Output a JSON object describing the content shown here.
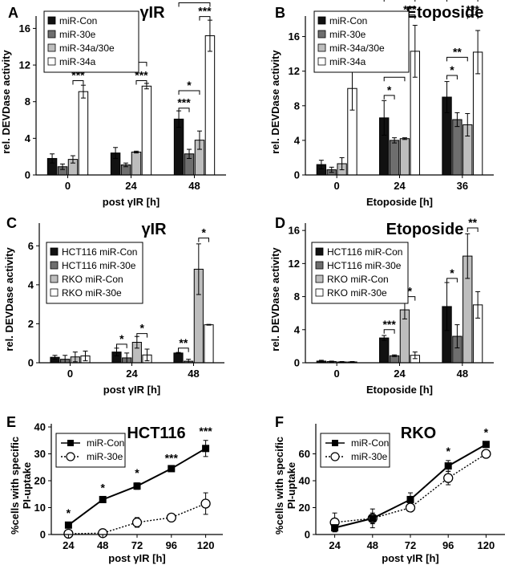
{
  "colors": {
    "miR-Con": "#111111",
    "miR-30e": "#6e6e6e",
    "miR-34a/30e": "#bdbdbd",
    "miR-34a": "#ffffff",
    "HCT116 miR-Con": "#111111",
    "HCT116 miR-30e": "#6e6e6e",
    "RKO miR-Con": "#bdbdbd",
    "RKO miR-30e": "#ffffff"
  },
  "chart_data": [
    {
      "panel": "A",
      "type": "bar",
      "title": "γIR",
      "xlabel": "post γIR [h]",
      "ylabel": "rel. DEVDase activity",
      "categories": [
        "0",
        "24",
        "48"
      ],
      "ylim": [
        0,
        17
      ],
      "yticks": [
        0,
        4,
        8,
        12,
        16
      ],
      "legend": "top-left",
      "series": [
        {
          "name": "miR-Con",
          "values": [
            1.8,
            2.4,
            6.1
          ],
          "errors": [
            0.5,
            0.6,
            0.9
          ]
        },
        {
          "name": "miR-30e",
          "values": [
            0.9,
            1.1,
            2.3
          ],
          "errors": [
            0.3,
            0.2,
            0.5
          ]
        },
        {
          "name": "miR-34a/30e",
          "values": [
            1.7,
            2.5,
            3.8
          ],
          "errors": [
            0.4,
            0.1,
            1.0
          ]
        },
        {
          "name": "miR-34a",
          "values": [
            9.1,
            9.7,
            15.2
          ],
          "errors": [
            0.7,
            0.3,
            1.7
          ]
        }
      ],
      "significance": [
        {
          "group": 0,
          "from": 0,
          "to": 3,
          "label": "**",
          "level": 12.3
        },
        {
          "group": 0,
          "from": 2,
          "to": 3,
          "label": "***",
          "level": 10.3
        },
        {
          "group": 1,
          "from": 0,
          "to": 3,
          "label": "***",
          "level": 12.3
        },
        {
          "group": 1,
          "from": 2,
          "to": 3,
          "label": "***",
          "level": 10.3
        },
        {
          "group": 2,
          "from": 0,
          "to": 3,
          "label": "***",
          "level": 18.8
        },
        {
          "group": 2,
          "from": 2,
          "to": 3,
          "label": "***",
          "level": 17.3
        },
        {
          "group": 2,
          "from": 0,
          "to": 2,
          "label": "*",
          "level": 9.2
        },
        {
          "group": 2,
          "from": 0,
          "to": 1,
          "label": "***",
          "level": 7.3
        }
      ]
    },
    {
      "panel": "B",
      "type": "bar",
      "title": "Etoposide",
      "xlabel": "Etoposide [h]",
      "ylabel": "rel. DEVDase activity",
      "categories": [
        "0",
        "24",
        "36"
      ],
      "ylim": [
        0,
        18
      ],
      "yticks": [
        0,
        4,
        8,
        12,
        16
      ],
      "legend": "top-left",
      "series": [
        {
          "name": "miR-Con",
          "values": [
            1.2,
            6.6,
            9.0
          ],
          "errors": [
            0.5,
            2.0,
            1.8
          ]
        },
        {
          "name": "miR-30e",
          "values": [
            0.6,
            4.0,
            6.4
          ],
          "errors": [
            0.3,
            0.3,
            0.8
          ]
        },
        {
          "name": "miR-34a/30e",
          "values": [
            1.3,
            4.2,
            5.8
          ],
          "errors": [
            0.7,
            0.1,
            1.3
          ]
        },
        {
          "name": "miR-34a",
          "values": [
            10.0,
            14.3,
            14.2
          ],
          "errors": [
            2.5,
            3.0,
            2.5
          ]
        }
      ],
      "significance": [
        {
          "group": 0,
          "from": 0,
          "to": 3,
          "label": "***",
          "level": 15.5
        },
        {
          "group": 0,
          "from": 2,
          "to": 3,
          "label": "***",
          "level": 13.5
        },
        {
          "group": 1,
          "from": 0,
          "to": 3,
          "label": "*",
          "level": 20.5
        },
        {
          "group": 1,
          "from": 2,
          "to": 3,
          "label": "***",
          "level": 18.5
        },
        {
          "group": 1,
          "from": 0,
          "to": 2,
          "label": "**",
          "level": 11.3
        },
        {
          "group": 1,
          "from": 0,
          "to": 1,
          "label": "*",
          "level": 9.2
        },
        {
          "group": 2,
          "from": 0,
          "to": 3,
          "label": "**",
          "level": 20.5
        },
        {
          "group": 2,
          "from": 2,
          "to": 3,
          "label": "***",
          "level": 18.5
        },
        {
          "group": 2,
          "from": 0,
          "to": 2,
          "label": "**",
          "level": 13.6
        },
        {
          "group": 2,
          "from": 0,
          "to": 1,
          "label": "*",
          "level": 11.5
        }
      ]
    },
    {
      "panel": "C",
      "type": "bar",
      "title": "γIR",
      "xlabel": "post γIR [h]",
      "ylabel": "rel. DEVDase activity",
      "categories": [
        "0",
        "24",
        "48"
      ],
      "ylim": [
        0,
        7
      ],
      "yticks": [
        0,
        2,
        4,
        6
      ],
      "legend": "top-left",
      "series": [
        {
          "name": "HCT116 miR-Con",
          "values": [
            0.28,
            0.55,
            0.5
          ],
          "errors": [
            0.1,
            0.2,
            0.03
          ]
        },
        {
          "name": "HCT116 miR-30e",
          "values": [
            0.18,
            0.25,
            0.08
          ],
          "errors": [
            0.2,
            0.25,
            0.1
          ]
        },
        {
          "name": "RKO miR-Con",
          "values": [
            0.3,
            1.05,
            4.8
          ],
          "errors": [
            0.25,
            0.3,
            1.3
          ]
        },
        {
          "name": "RKO miR-30e",
          "values": [
            0.35,
            0.4,
            1.95
          ],
          "errors": [
            0.25,
            0.3,
            0.02
          ]
        }
      ],
      "significance": [
        {
          "group": 1,
          "from": 0,
          "to": 1,
          "label": "*",
          "level": 0.95
        },
        {
          "group": 1,
          "from": 2,
          "to": 3,
          "label": "*",
          "level": 1.5
        },
        {
          "group": 2,
          "from": 0,
          "to": 1,
          "label": "**",
          "level": 0.75
        },
        {
          "group": 2,
          "from": 2,
          "to": 3,
          "label": "*",
          "level": 6.4
        }
      ]
    },
    {
      "panel": "D",
      "type": "bar",
      "title": "Etoposide",
      "xlabel": "Etoposide [h]",
      "ylabel": "rel. DEVDase activity",
      "categories": [
        "0",
        "24",
        "48"
      ],
      "ylim": [
        0,
        16.5
      ],
      "yticks": [
        0,
        4,
        8,
        12,
        16
      ],
      "legend": "top-left",
      "series": [
        {
          "name": "HCT116 miR-Con",
          "values": [
            0.2,
            3.0,
            6.8
          ],
          "errors": [
            0.1,
            0.3,
            2.9
          ]
        },
        {
          "name": "HCT116 miR-30e",
          "values": [
            0.15,
            0.85,
            3.2
          ],
          "errors": [
            0.05,
            0.1,
            1.4
          ]
        },
        {
          "name": "RKO miR-Con",
          "values": [
            0.1,
            6.4,
            12.9
          ],
          "errors": [
            0.05,
            1.1,
            2.7
          ]
        },
        {
          "name": "RKO miR-30e",
          "values": [
            0.1,
            0.9,
            7.0
          ],
          "errors": [
            0.05,
            0.4,
            1.6
          ]
        }
      ],
      "significance": [
        {
          "group": 1,
          "from": 0,
          "to": 1,
          "label": "***",
          "level": 4.0
        },
        {
          "group": 1,
          "from": 2,
          "to": 3,
          "label": "*",
          "level": 8.0
        },
        {
          "group": 2,
          "from": 0,
          "to": 1,
          "label": "*",
          "level": 10.2
        },
        {
          "group": 2,
          "from": 2,
          "to": 3,
          "label": "**",
          "level": 16.3
        }
      ]
    },
    {
      "panel": "E",
      "type": "line",
      "title": "HCT116",
      "xlabel": "post γIR [h]",
      "ylabel": "%cells with specific PI-uptake",
      "x": [
        24,
        48,
        72,
        96,
        120
      ],
      "xlim": [
        12,
        132
      ],
      "ylim": [
        0,
        40
      ],
      "yticks": [
        0,
        10,
        20,
        30,
        40
      ],
      "legend": "top-left",
      "series": [
        {
          "name": "miR-Con",
          "marker": "square",
          "line": "solid",
          "values": [
            3.5,
            13,
            18,
            24.5,
            32
          ],
          "errors": [
            1.0,
            1.0,
            1.2,
            0.8,
            3.0
          ]
        },
        {
          "name": "miR-30e",
          "marker": "circle",
          "line": "dotted",
          "values": [
            0.3,
            0.5,
            4.5,
            6.3,
            11.5
          ],
          "errors": [
            0.3,
            0.3,
            1.8,
            0.6,
            4.0
          ]
        }
      ],
      "significance": [
        {
          "x": 24,
          "label": "*",
          "level": 6.5
        },
        {
          "x": 48,
          "label": "*",
          "level": 16
        },
        {
          "x": 72,
          "label": "*",
          "level": 21.5
        },
        {
          "x": 96,
          "label": "***",
          "level": 27
        },
        {
          "x": 120,
          "label": "***",
          "level": 37
        }
      ]
    },
    {
      "panel": "F",
      "type": "line",
      "title": "RKO",
      "xlabel": "post γIR [h]",
      "ylabel": "%cells with specific PI-uptake",
      "x": [
        24,
        48,
        72,
        96,
        120
      ],
      "xlim": [
        12,
        132
      ],
      "ylim": [
        0,
        80
      ],
      "yticks": [
        0,
        20,
        40,
        60
      ],
      "legend": "top-left",
      "series": [
        {
          "name": "miR-Con",
          "marker": "square",
          "line": "solid",
          "values": [
            5,
            12,
            26,
            51,
            67
          ],
          "errors": [
            3,
            4,
            5,
            4,
            2
          ]
        },
        {
          "name": "miR-30e",
          "marker": "circle",
          "line": "dotted",
          "values": [
            9,
            12,
            20,
            42,
            60
          ],
          "errors": [
            7,
            7,
            3,
            5,
            2
          ]
        }
      ],
      "significance": [
        {
          "x": 96,
          "label": "*",
          "level": 59
        },
        {
          "x": 120,
          "label": "*",
          "level": 73
        }
      ]
    }
  ]
}
